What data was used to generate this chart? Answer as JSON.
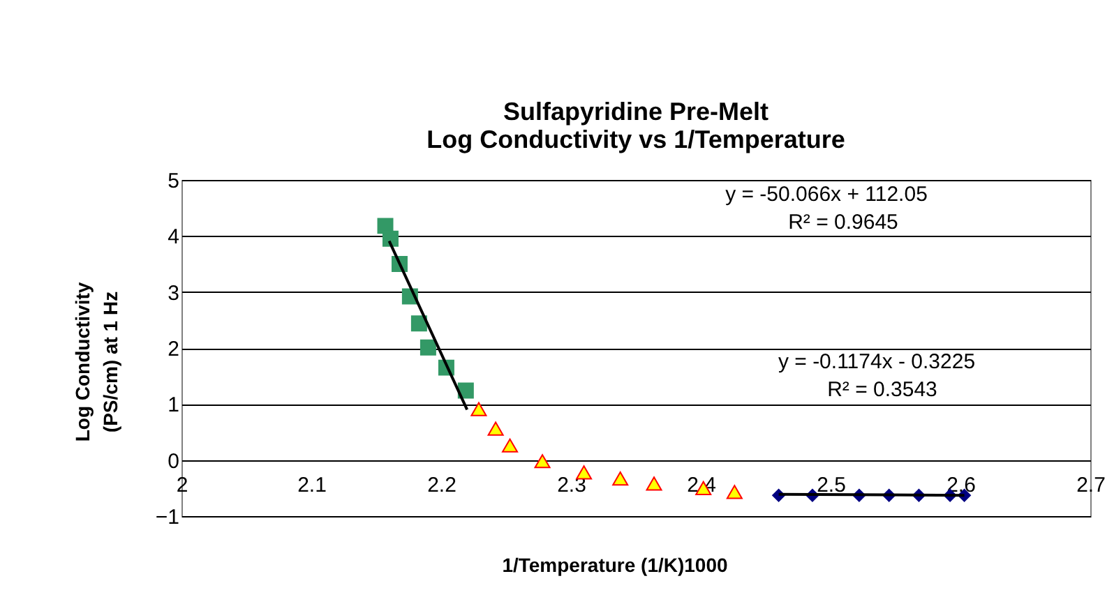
{
  "chart_data": {
    "type": "scatter",
    "title": "Sulfapyridine Pre-Melt\nLog Conductivity vs 1/Temperature",
    "xlabel": "1/Temperature (1/K)1000",
    "ylabel": "Log Conductivity\n(PS/cm) at 1 Hz",
    "xlim": [
      2,
      2.7
    ],
    "xticks": [
      2,
      2.1,
      2.2,
      2.3,
      2.4,
      2.5,
      2.6,
      2.7
    ],
    "ylim": [
      -1,
      5
    ],
    "yticks": [
      -1,
      0,
      1,
      2,
      3,
      4,
      5
    ],
    "grid": "y",
    "series": [
      {
        "type": "scatter",
        "marker": "square",
        "color": "#339966",
        "x": [
          2.157,
          2.161,
          2.168,
          2.176,
          2.183,
          2.19,
          2.204,
          2.219
        ],
        "values": [
          4.18,
          3.95,
          3.5,
          2.92,
          2.44,
          2.01,
          1.65,
          1.24
        ]
      },
      {
        "type": "scatter",
        "marker": "triangle",
        "color": "#ffff00",
        "x": [
          2.229,
          2.242,
          2.253,
          2.278,
          2.31,
          2.338,
          2.364,
          2.402,
          2.426
        ],
        "values": [
          0.91,
          0.56,
          0.26,
          -0.02,
          -0.22,
          -0.33,
          -0.42,
          -0.5,
          -0.57
        ]
      },
      {
        "type": "scatter",
        "marker": "diamond",
        "color": "#000080",
        "x": [
          2.46,
          2.486,
          2.522,
          2.545,
          2.568,
          2.592,
          2.603
        ],
        "values": [
          -0.63,
          -0.63,
          -0.63,
          -0.63,
          -0.63,
          -0.63,
          -0.63
        ]
      },
      {
        "type": "line",
        "color": "#000000",
        "x": [
          2.16,
          2.22
        ],
        "values": [
          3.91,
          0.9
        ]
      },
      {
        "type": "line",
        "color": "#000000",
        "x": [
          2.46,
          2.603
        ],
        "values": [
          -0.61,
          -0.63
        ]
      }
    ],
    "annotations": [
      "y = -50.066x + 112.05",
      "R² = 0.9645",
      "y = -0.1174x - 0.3225",
      "R² = 0.3543"
    ]
  }
}
